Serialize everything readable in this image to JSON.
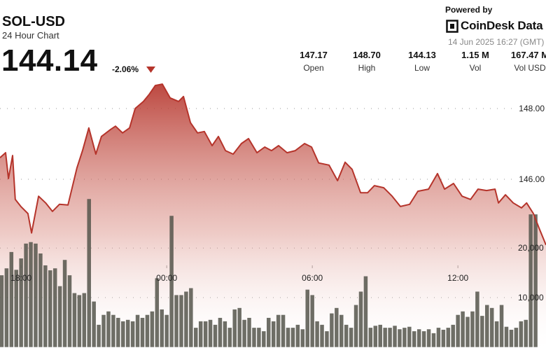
{
  "chart_data": {
    "type": "area",
    "title": "SOL-USD",
    "subtitle": "24 Hour Chart",
    "price": "144.14",
    "change": "-2.06%",
    "powered_by": "Powered by",
    "brand": "CoinDesk Data",
    "timestamp": "14 Jun 2025 16:27 (GMT)",
    "stats": [
      {
        "value": "147.17",
        "label": "Open"
      },
      {
        "value": "148.70",
        "label": "High"
      },
      {
        "value": "144.13",
        "label": "Low"
      },
      {
        "value": "1.15 M",
        "label": "Vol"
      },
      {
        "value": "167.47 M",
        "label": "Vol USD"
      }
    ],
    "grid": true,
    "xlim": [
      17.13,
      39.63
    ],
    "xticks": [
      {
        "value": 18,
        "label": "18:00"
      },
      {
        "value": 24,
        "label": "00:00"
      },
      {
        "value": 30,
        "label": "06:00"
      },
      {
        "value": 36,
        "label": "12:00"
      }
    ],
    "ylim": [
      141.03,
      148.89
    ],
    "yticks": [
      {
        "value": 146,
        "label": "146.00"
      },
      {
        "value": 148,
        "label": "148.00"
      }
    ],
    "y2lim": [
      -1600,
      54533
    ],
    "y2ticks": [
      {
        "value": 10000,
        "label": "10,000"
      },
      {
        "value": 20000,
        "label": "20,000"
      }
    ],
    "series": [
      {
        "type": "area",
        "color": "#b5342b",
        "x": [
          17.13,
          17.36,
          17.48,
          17.65,
          17.76,
          17.99,
          18.28,
          18.43,
          18.72,
          19.01,
          19.29,
          19.58,
          19.93,
          20.3,
          20.53,
          20.79,
          21.08,
          21.31,
          21.69,
          21.89,
          22.18,
          22.47,
          22.7,
          23.04,
          23.28,
          23.53,
          23.82,
          24.14,
          24.49,
          24.69,
          24.98,
          25.27,
          25.55,
          25.87,
          26.13,
          26.42,
          26.74,
          27.08,
          27.37,
          27.72,
          28.04,
          28.32,
          28.61,
          28.96,
          29.3,
          29.68,
          29.97,
          30.26,
          30.69,
          31.04,
          31.35,
          31.64,
          31.99,
          32.28,
          32.56,
          32.94,
          33.29,
          33.63,
          34.01,
          34.35,
          34.79,
          35.16,
          35.45,
          35.82,
          36.17,
          36.52,
          36.83,
          37.18,
          37.53,
          37.67,
          37.96,
          38.28,
          38.62,
          38.83,
          39.11,
          39.34,
          39.63
        ],
        "values": [
          146.61,
          146.75,
          146.02,
          146.67,
          145.43,
          145.23,
          145.03,
          144.48,
          145.52,
          145.33,
          145.09,
          145.29,
          145.27,
          146.32,
          146.81,
          147.45,
          146.71,
          147.21,
          147.41,
          147.5,
          147.31,
          147.45,
          148.0,
          148.2,
          148.4,
          148.65,
          148.69,
          148.3,
          148.2,
          148.34,
          147.6,
          147.31,
          147.35,
          146.95,
          147.21,
          146.81,
          146.71,
          147.01,
          147.15,
          146.75,
          146.91,
          146.81,
          146.95,
          146.75,
          146.81,
          147.01,
          146.91,
          146.46,
          146.4,
          145.96,
          146.48,
          146.28,
          145.62,
          145.62,
          145.82,
          145.76,
          145.52,
          145.23,
          145.29,
          145.66,
          145.72,
          146.16,
          145.72,
          145.88,
          145.52,
          145.43,
          145.72,
          145.68,
          145.72,
          145.33,
          145.56,
          145.33,
          145.19,
          145.33,
          145.03,
          144.63,
          144.14
        ]
      },
      {
        "type": "bar",
        "axis": "y2",
        "color": "#55554b",
        "x": [
          17.2,
          17.4,
          17.6,
          17.8,
          18,
          18.2,
          18.4,
          18.6,
          18.8,
          19,
          19.2,
          19.4,
          19.6,
          19.8,
          20,
          20.2,
          20.4,
          20.6,
          20.8,
          21,
          21.2,
          21.4,
          21.6,
          21.8,
          22,
          22.2,
          22.4,
          22.6,
          22.8,
          23,
          23.2,
          23.4,
          23.6,
          23.8,
          24,
          24.2,
          24.4,
          24.6,
          24.8,
          25,
          25.2,
          25.4,
          25.6,
          25.8,
          26,
          26.2,
          26.4,
          26.6,
          26.8,
          27,
          27.2,
          27.4,
          27.6,
          27.8,
          28,
          28.2,
          28.4,
          28.6,
          28.8,
          29,
          29.2,
          29.4,
          29.6,
          29.8,
          30,
          30.2,
          30.4,
          30.6,
          30.8,
          31,
          31.2,
          31.4,
          31.6,
          31.8,
          32,
          32.2,
          32.4,
          32.6,
          32.8,
          33,
          33.2,
          33.4,
          33.6,
          33.8,
          34,
          34.2,
          34.4,
          34.6,
          34.8,
          35,
          35.2,
          35.4,
          35.6,
          35.8,
          36,
          36.2,
          36.4,
          36.6,
          36.8,
          37,
          37.2,
          37.4,
          37.6,
          37.8,
          38,
          38.2,
          38.4,
          38.6,
          38.8,
          39,
          39.2
        ],
        "values": [
          14500,
          15900,
          19200,
          15600,
          17900,
          20900,
          21200,
          20900,
          18900,
          16500,
          15500,
          15900,
          12300,
          17600,
          14500,
          10900,
          10500,
          10900,
          29900,
          9200,
          4500,
          6500,
          7200,
          6500,
          5900,
          5200,
          5500,
          5200,
          6500,
          5900,
          6500,
          7200,
          13900,
          7600,
          6500,
          26500,
          10500,
          10500,
          11200,
          11900,
          3900,
          5200,
          5200,
          5500,
          4500,
          5900,
          5200,
          3900,
          7600,
          7900,
          5500,
          5900,
          3900,
          3900,
          3200,
          5900,
          5200,
          6500,
          6500,
          3900,
          3900,
          4500,
          3600,
          11600,
          10500,
          5200,
          4500,
          3200,
          6800,
          7900,
          6500,
          4500,
          3900,
          8500,
          11200,
          14300,
          3900,
          4300,
          4500,
          3900,
          3900,
          4300,
          3600,
          3900,
          4100,
          3200,
          3600,
          3200,
          3600,
          2800,
          3900,
          3500,
          3900,
          4500,
          6500,
          7200,
          6100,
          7200,
          11200,
          6300,
          8500,
          7900,
          5200,
          8500,
          4100,
          3500,
          3900,
          5200,
          5500,
          26800,
          26800
        ]
      }
    ]
  }
}
